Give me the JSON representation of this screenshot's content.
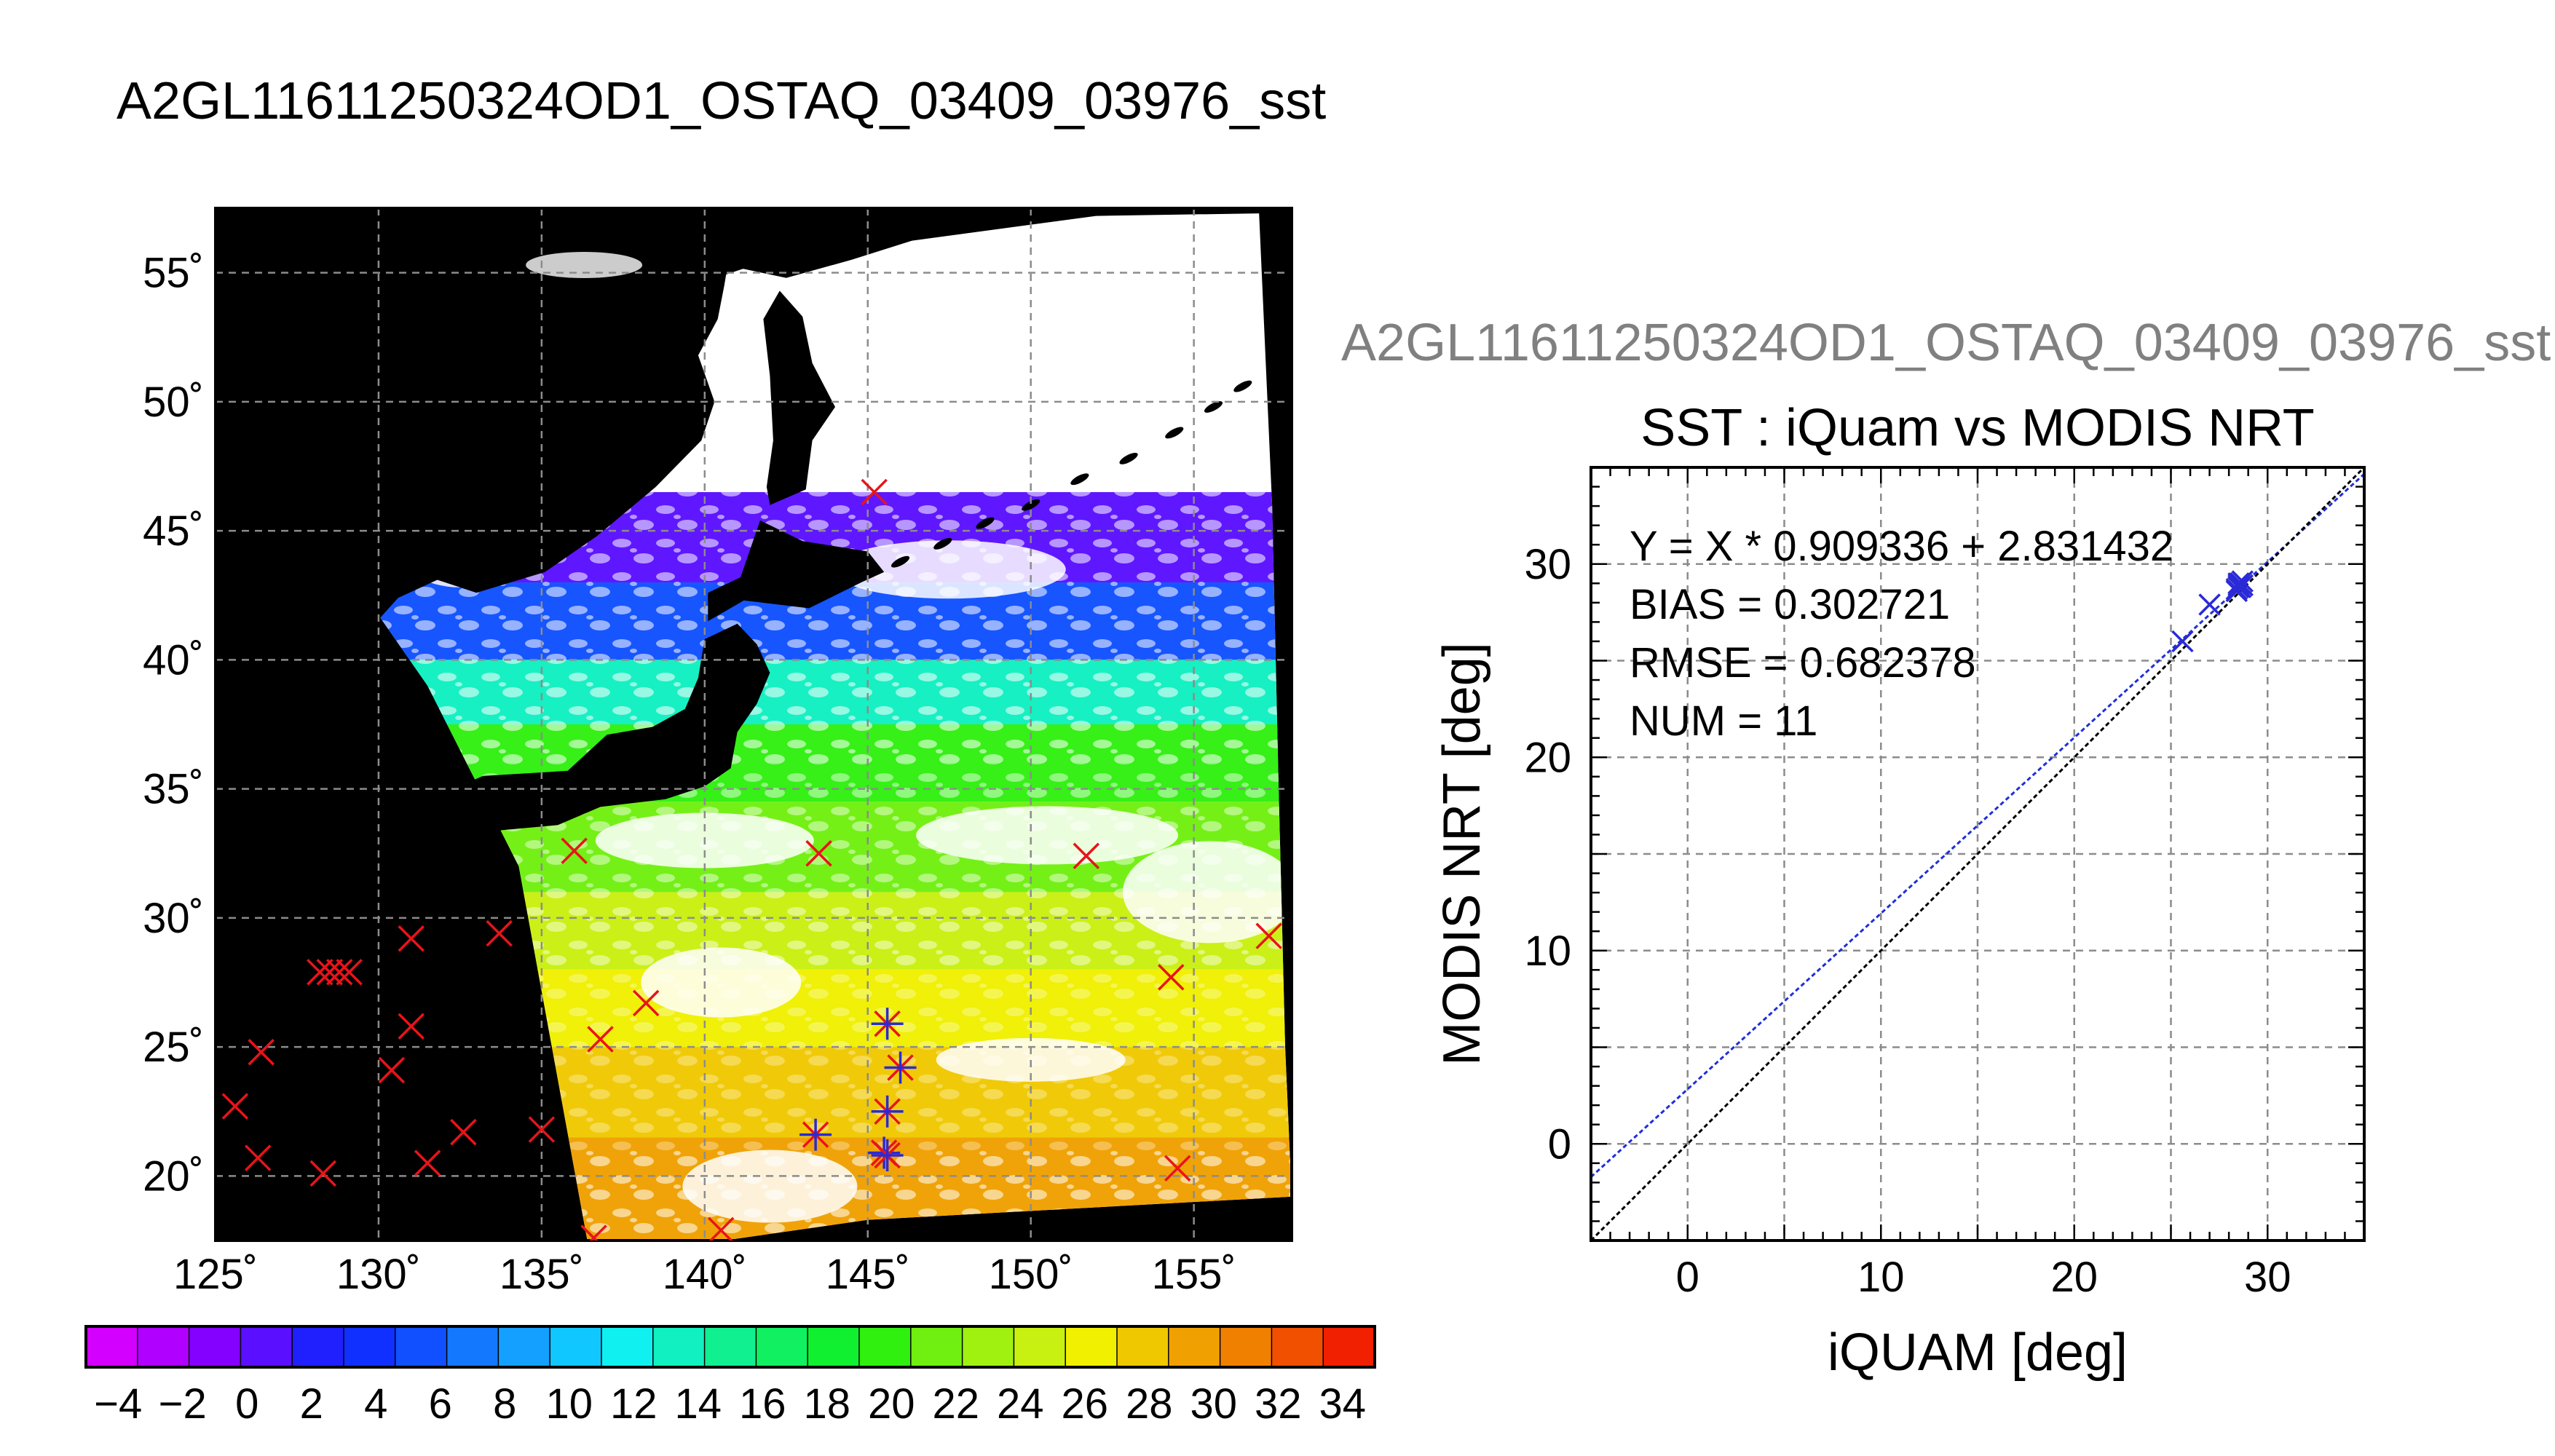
{
  "page": {
    "main_title": "A2GL11611250324OD1_OSTAQ_03409_03976_sst",
    "scatter_header": "A2GL11611250324OD1_OSTAQ_03409_03976_sst"
  },
  "colors": {
    "background": "#ffffff",
    "map_background": "#000000",
    "cloud": "#ffffff",
    "land": "#000000",
    "grid": "#8c8c8c",
    "buoy_marker": "#e8141a",
    "matchup_marker": "#2a2ad6",
    "regression_line": "#1f2fd8",
    "identity_line": "#000000",
    "scatter_header_text": "#808080"
  },
  "chart_data": [
    {
      "id": "sst-map",
      "type": "map",
      "title": "",
      "lon_ticks": [
        125,
        130,
        135,
        140,
        145,
        150,
        155
      ],
      "lat_ticks": [
        20,
        25,
        30,
        35,
        40,
        45,
        50,
        55
      ],
      "lon_tick_labels": [
        "125˚",
        "130˚",
        "135˚",
        "140˚",
        "145˚",
        "150˚",
        "155˚"
      ],
      "lat_tick_labels": [
        "20˚",
        "25˚",
        "30˚",
        "35˚",
        "40˚",
        "45˚",
        "50˚",
        "55˚"
      ],
      "lon_range": [
        125,
        158
      ],
      "lat_range": [
        17.5,
        57.5
      ],
      "grid": true,
      "value_units": "deg C",
      "sst_zones": [
        {
          "lat_from": 43.0,
          "lat_to": 46.5,
          "sst": 1
        },
        {
          "lat_from": 40.0,
          "lat_to": 43.0,
          "sst": 6
        },
        {
          "lat_from": 37.5,
          "lat_to": 40.0,
          "sst": 13
        },
        {
          "lat_from": 34.5,
          "lat_to": 37.5,
          "sst": 19
        },
        {
          "lat_from": 31.0,
          "lat_to": 34.5,
          "sst": 22
        },
        {
          "lat_from": 28.0,
          "lat_to": 31.0,
          "sst": 25
        },
        {
          "lat_from": 25.0,
          "lat_to": 28.0,
          "sst": 26
        },
        {
          "lat_from": 21.5,
          "lat_to": 25.0,
          "sst": 28
        },
        {
          "lat_from": 17.5,
          "lat_to": 21.5,
          "sst": 29
        }
      ],
      "buoy_positions": [
        {
          "lon": 145.2,
          "lat": 46.5
        },
        {
          "lon": 136.0,
          "lat": 32.6
        },
        {
          "lon": 143.5,
          "lat": 32.5
        },
        {
          "lon": 151.7,
          "lat": 32.4
        },
        {
          "lon": 133.7,
          "lat": 29.4
        },
        {
          "lon": 131.0,
          "lat": 29.2
        },
        {
          "lon": 157.3,
          "lat": 29.3
        },
        {
          "lon": 128.2,
          "lat": 27.9
        },
        {
          "lon": 128.5,
          "lat": 27.9
        },
        {
          "lon": 128.8,
          "lat": 27.9
        },
        {
          "lon": 129.1,
          "lat": 27.9
        },
        {
          "lon": 154.3,
          "lat": 27.7
        },
        {
          "lon": 138.2,
          "lat": 26.7
        },
        {
          "lon": 131.0,
          "lat": 25.8
        },
        {
          "lon": 136.8,
          "lat": 25.3
        },
        {
          "lon": 126.4,
          "lat": 24.8
        },
        {
          "lon": 130.4,
          "lat": 24.1
        },
        {
          "lon": 125.6,
          "lat": 22.7
        },
        {
          "lon": 132.6,
          "lat": 21.7
        },
        {
          "lon": 135.0,
          "lat": 21.8
        },
        {
          "lon": 126.3,
          "lat": 20.7
        },
        {
          "lon": 131.5,
          "lat": 20.5
        },
        {
          "lon": 128.3,
          "lat": 20.1
        },
        {
          "lon": 154.5,
          "lat": 20.3
        },
        {
          "lon": 136.6,
          "lat": 17.6
        },
        {
          "lon": 140.5,
          "lat": 17.9
        }
      ],
      "matchup_positions": [
        {
          "lon": 145.6,
          "lat": 25.9
        },
        {
          "lon": 146.0,
          "lat": 24.2
        },
        {
          "lon": 145.6,
          "lat": 22.5
        },
        {
          "lon": 143.4,
          "lat": 21.6
        },
        {
          "lon": 145.5,
          "lat": 20.9
        },
        {
          "lon": 145.6,
          "lat": 20.8
        }
      ]
    },
    {
      "id": "sst-scatter",
      "type": "scatter",
      "title": "SST : iQuam vs MODIS NRT",
      "xlabel": "iQUAM [deg]",
      "ylabel": "MODIS NRT [deg]",
      "xlim": [
        -5,
        35
      ],
      "ylim": [
        -5,
        35
      ],
      "xticks": [
        0,
        10,
        20,
        30
      ],
      "yticks": [
        0,
        10,
        20,
        30
      ],
      "grid": true,
      "series": [
        {
          "points": [
            {
              "x": 25.6,
              "y": 26.0
            },
            {
              "x": 27.0,
              "y": 27.9
            },
            {
              "x": 28.4,
              "y": 28.7
            },
            {
              "x": 28.5,
              "y": 28.9
            },
            {
              "x": 28.6,
              "y": 29.0
            },
            {
              "x": 28.5,
              "y": 28.8
            },
            {
              "x": 28.7,
              "y": 29.1
            },
            {
              "x": 28.4,
              "y": 28.6
            },
            {
              "x": 28.6,
              "y": 28.8
            },
            {
              "x": 28.5,
              "y": 29.0
            },
            {
              "x": 28.7,
              "y": 28.9
            }
          ]
        }
      ],
      "regression": {
        "slope": 0.909336,
        "intercept": 2.831432
      },
      "annotations": [
        "Y = X * 0.909336 + 2.831432",
        "BIAS = 0.302721",
        "RMSE = 0.682378",
        "NUM = 11"
      ]
    },
    {
      "id": "sst-colorbar",
      "type": "colorbar",
      "range": [
        -5,
        35
      ],
      "tick_values": [
        -4,
        -2,
        0,
        2,
        4,
        6,
        8,
        10,
        12,
        14,
        16,
        18,
        20,
        22,
        24,
        26,
        28,
        30,
        32,
        34
      ],
      "tick_labels": [
        "−4",
        "−2",
        "0",
        "2",
        "4",
        "6",
        "8",
        "10",
        "12",
        "14",
        "16",
        "18",
        "20",
        "22",
        "24",
        "26",
        "28",
        "30",
        "32",
        "34"
      ],
      "colors": [
        "#d400ff",
        "#b000ff",
        "#8400ff",
        "#5a10ff",
        "#2020ff",
        "#1030ff",
        "#1050ff",
        "#1478ff",
        "#14a0ff",
        "#10c8ff",
        "#10f0f0",
        "#10f0c0",
        "#10f090",
        "#10f060",
        "#10f030",
        "#30f010",
        "#70f010",
        "#a0f010",
        "#c8f010",
        "#f0f000",
        "#f0c800",
        "#f0a000",
        "#f08000",
        "#f05000",
        "#f02000"
      ]
    }
  ]
}
